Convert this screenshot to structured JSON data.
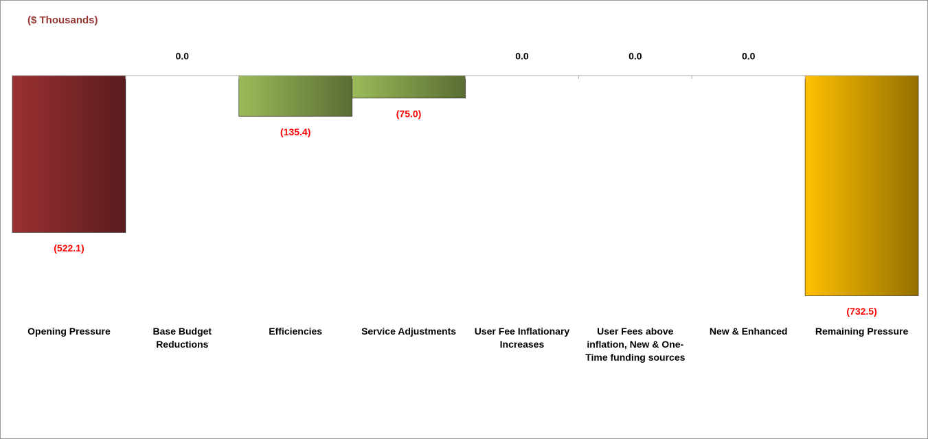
{
  "chart_data": {
    "type": "bar",
    "subtitle": "($ Thousands)",
    "categories": [
      "Opening Pressure",
      "Base Budget Reductions",
      "Efficiencies",
      "Service Adjustments",
      "User Fee Inflationary Increases",
      "User Fees above inflation, New & One-Time funding sources",
      "New & Enhanced",
      "Remaining Pressure"
    ],
    "values": [
      -522.1,
      0,
      -135.4,
      -75.0,
      0,
      0,
      0,
      -732.5
    ],
    "value_labels": [
      "(522.1)",
      "0.0",
      "(135.4)",
      "(75.0)",
      "0.0",
      "0.0",
      "0.0",
      "(732.5)"
    ],
    "colors": [
      "#9b3032",
      "#9bbb59",
      "#9bbb59",
      "#9bbb59",
      "#9bbb59",
      "#9bbb59",
      "#9bbb59",
      "#ffc000"
    ],
    "ylim": [
      -800,
      0
    ]
  }
}
